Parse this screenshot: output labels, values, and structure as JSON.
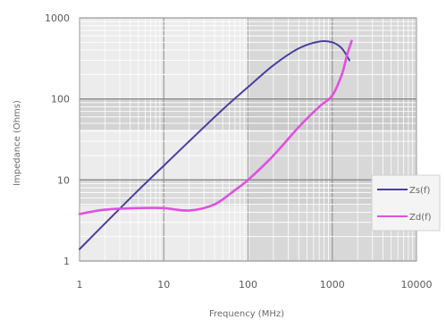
{
  "chart_data": {
    "type": "line",
    "xlabel": "Frequency (MHz)",
    "ylabel": "Impedance (Ohms)",
    "x_scale": "log",
    "y_scale": "log",
    "xlim": [
      1,
      10000
    ],
    "ylim": [
      1,
      1000
    ],
    "x_ticks": [
      "1",
      "10",
      "100",
      "1000",
      "10000"
    ],
    "y_ticks": [
      "1000",
      "100",
      "10",
      "1"
    ],
    "grid": true,
    "legend_position": "right",
    "series": [
      {
        "name": "Zs(f)",
        "color": "#4a3fa0",
        "points": [
          {
            "x": 1,
            "y": 1.4
          },
          {
            "x": 2,
            "y": 2.9
          },
          {
            "x": 5,
            "y": 7.5
          },
          {
            "x": 10,
            "y": 15
          },
          {
            "x": 20,
            "y": 30
          },
          {
            "x": 50,
            "y": 74
          },
          {
            "x": 100,
            "y": 140
          },
          {
            "x": 200,
            "y": 260
          },
          {
            "x": 400,
            "y": 420
          },
          {
            "x": 700,
            "y": 510
          },
          {
            "x": 1000,
            "y": 500
          },
          {
            "x": 1300,
            "y": 420
          },
          {
            "x": 1600,
            "y": 300
          }
        ]
      },
      {
        "name": "Zd(f)",
        "color": "#e050e0",
        "points": [
          {
            "x": 1,
            "y": 3.8
          },
          {
            "x": 2,
            "y": 4.3
          },
          {
            "x": 5,
            "y": 4.5
          },
          {
            "x": 10,
            "y": 4.5
          },
          {
            "x": 20,
            "y": 4.2
          },
          {
            "x": 40,
            "y": 5
          },
          {
            "x": 70,
            "y": 7.5
          },
          {
            "x": 100,
            "y": 10
          },
          {
            "x": 200,
            "y": 20
          },
          {
            "x": 400,
            "y": 45
          },
          {
            "x": 700,
            "y": 80
          },
          {
            "x": 1000,
            "y": 110
          },
          {
            "x": 1300,
            "y": 200
          },
          {
            "x": 1500,
            "y": 350
          },
          {
            "x": 1700,
            "y": 520
          }
        ]
      }
    ]
  }
}
